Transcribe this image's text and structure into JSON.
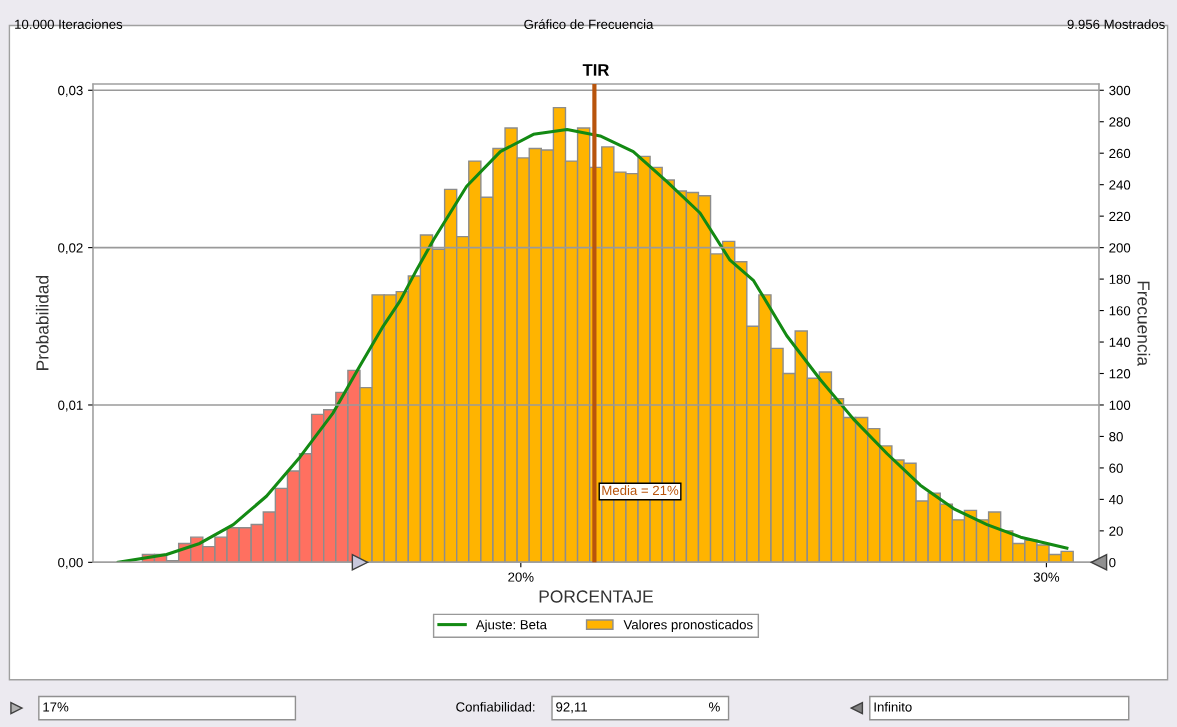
{
  "chart_data": {
    "type": "histogram",
    "title": "TIR",
    "xlabel": "PORCENTAJE",
    "ylabel": "Probabilidad",
    "y2label": "Frecuencia",
    "annotations": [
      "10.000 Iteraciones",
      "Gráfico de Frecuencia",
      "9.956 Mostrados",
      "17%",
      "Confiabilidad:",
      "92,11",
      "%",
      "Infinito"
    ],
    "bins": [
      12.8,
      13.03,
      13.26,
      13.49,
      13.72,
      13.95,
      14.18,
      14.41,
      14.64,
      14.87,
      15.1,
      15.33,
      15.56,
      15.79,
      16.02,
      16.25,
      16.48,
      16.71,
      16.94,
      17.17,
      17.4,
      17.63,
      17.86,
      18.09,
      18.32,
      18.55,
      18.78,
      19.01,
      19.24,
      19.47,
      19.7,
      19.93,
      20.16,
      20.39,
      20.62,
      20.85,
      21.08,
      21.31,
      21.54,
      21.77,
      22.0,
      22.23,
      22.46,
      22.69,
      22.92,
      23.15,
      23.38,
      23.61,
      23.84,
      24.07,
      24.3,
      24.53,
      24.76,
      24.99,
      25.22,
      25.45,
      25.68,
      25.91,
      26.14,
      26.37,
      26.6,
      26.83,
      27.06,
      27.29,
      27.52,
      27.75,
      27.98,
      28.21,
      28.44,
      28.67,
      28.9,
      29.13,
      29.36,
      29.59,
      29.82,
      30.05,
      30.28,
      30.51
    ],
    "series": [
      {
        "name": "Valores pronosticados",
        "axis": "y2",
        "color": "#ffb400",
        "colors": [
          "#ff7060",
          "#ff7060",
          "#ff7060",
          "#ff7060",
          "#ff7060",
          "#ff7060",
          "#ff7060",
          "#ff7060",
          "#ff7060",
          "#ff7060",
          "#ff7060",
          "#ff7060",
          "#ff7060",
          "#ff7060",
          "#ff7060",
          "#ff7060",
          "#ff7060",
          "#ff7060",
          "#ffb400",
          "#ffb400",
          "#ffb400",
          "#ffb400",
          "#ffb400",
          "#ffb400",
          "#ffb400",
          "#ffb400",
          "#ffb400",
          "#ffb400",
          "#ffb400",
          "#ffb400",
          "#ffb400",
          "#ffb400",
          "#ffb400",
          "#ffb400",
          "#ffb400",
          "#ffb400",
          "#ffb400",
          "#ffb400",
          "#ffb400",
          "#ffb400",
          "#ffb400",
          "#ffb400",
          "#ffb400",
          "#ffb400",
          "#ffb400",
          "#ffb400",
          "#ffb400",
          "#ffb400",
          "#ffb400",
          "#ffb400",
          "#ffb400",
          "#ffb400",
          "#ffb400",
          "#ffb400",
          "#ffb400",
          "#ffb400",
          "#ffb400",
          "#ffb400",
          "#ffb400",
          "#ffb400",
          "#ffb400",
          "#ffb400",
          "#ffb400",
          "#ffb400",
          "#ffb400",
          "#ffb400",
          "#ffb400",
          "#ffb400",
          "#ffb400",
          "#ffb400",
          "#ffb400",
          "#ffb400",
          "#ffb400",
          "#ffb400",
          "#ffb400",
          "#ffb400",
          "#ffb400"
        ],
        "values": [
          5,
          5,
          1,
          12,
          16,
          10,
          16,
          22,
          22,
          24,
          32,
          47,
          58,
          69,
          94,
          97,
          108,
          122,
          111,
          170,
          170,
          172,
          182,
          208,
          199,
          237,
          207,
          255,
          232,
          263,
          276,
          257,
          263,
          262,
          289,
          255,
          276,
          251,
          264,
          248,
          247,
          258,
          251,
          243,
          236,
          235,
          233,
          196,
          204,
          191,
          150,
          170,
          136,
          120,
          147,
          117,
          121,
          104,
          92,
          92,
          85,
          74,
          65,
          63,
          39,
          44,
          37,
          27,
          33,
          27,
          32,
          20,
          12,
          14,
          11,
          5,
          7
        ]
      },
      {
        "type": "line",
        "name": "Ajuste: Beta",
        "axis": "y2",
        "color": "#138a13",
        "x": [
          12.34,
          13.26,
          13.89,
          14.53,
          15.16,
          15.8,
          16.43,
          16.94,
          17.38,
          17.7,
          18.02,
          18.34,
          18.97,
          19.61,
          20.24,
          20.88,
          21.51,
          22.14,
          22.78,
          23.41,
          23.98,
          24.43,
          25.06,
          25.7,
          26.33,
          26.97,
          27.6,
          28.24,
          28.87,
          29.51,
          30.39
        ],
        "values": [
          0,
          5,
          12,
          24,
          42,
          67,
          95,
          125,
          150,
          166,
          186,
          205,
          239,
          261,
          272,
          275,
          271,
          261,
          242,
          222,
          192,
          179,
          144,
          116,
          91,
          69,
          49,
          34,
          24,
          16,
          9
        ]
      }
    ],
    "ref_lines": [
      {
        "axis": "x",
        "value": 21.4,
        "label": "Media = 21%",
        "color": "#b8540c"
      }
    ],
    "xlim": [
      11.86,
      31.0
    ],
    "xticks": [
      {
        "value": 20,
        "label": "20%"
      },
      {
        "value": 30,
        "label": "30%"
      }
    ],
    "ylim": [
      0,
      0.0304
    ],
    "yticks": [
      {
        "value": 0,
        "label": "0,00"
      },
      {
        "value": 0.01,
        "label": "0,01"
      },
      {
        "value": 0.02,
        "label": "0,02"
      },
      {
        "value": 0.03,
        "label": "0,03"
      }
    ],
    "y2lim": [
      0,
      304
    ],
    "y2ticks": [
      0,
      20,
      40,
      60,
      80,
      100,
      120,
      140,
      160,
      180,
      200,
      220,
      240,
      260,
      280,
      300
    ],
    "grid": "y",
    "legend": "bottom"
  }
}
